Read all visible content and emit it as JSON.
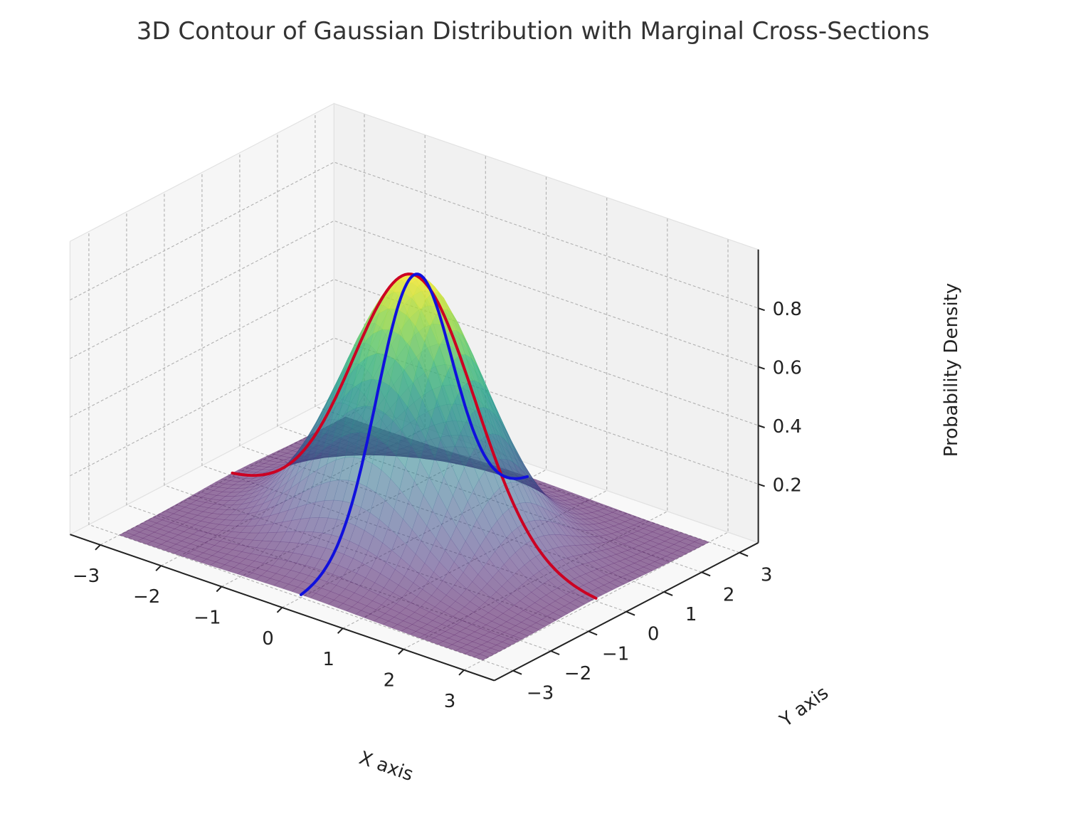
{
  "chart_data": {
    "type": "surface",
    "title": "3D Contour of Gaussian Distribution with Marginal Cross-Sections",
    "xlabel": "X axis",
    "ylabel": "Y axis",
    "zlabel": "Probability Density",
    "xlim": [
      -3,
      3
    ],
    "ylim": [
      -3,
      3
    ],
    "zlim": [
      0,
      1.0
    ],
    "x_ticks": [
      -3,
      -2,
      -1,
      0,
      1,
      2,
      3
    ],
    "x_tick_labels": [
      "−3",
      "−2",
      "−1",
      "0",
      "1",
      "2",
      "3"
    ],
    "y_ticks": [
      -3,
      -2,
      -1,
      0,
      1,
      2,
      3
    ],
    "y_tick_labels": [
      "−3",
      "−2",
      "−1",
      "0",
      "1",
      "2",
      "3"
    ],
    "z_ticks": [
      0.2,
      0.4,
      0.6,
      0.8
    ],
    "z_tick_labels": [
      "0.2",
      "0.4",
      "0.6",
      "0.8"
    ],
    "surface": {
      "function": "z = 0.9 * exp(-(x^2 + y^2) / 2)",
      "peak": 0.9,
      "sigma": 1,
      "colormap": "viridis",
      "alpha": 0.55
    },
    "series": [
      {
        "color": "#cc0022",
        "slice": "y = 0",
        "function": "z = 0.9 * exp(-x^2 / 2)",
        "x_range": [
          -3,
          3
        ]
      },
      {
        "color": "#1010dd",
        "slice": "x = 0",
        "function": "z = 0.9 * exp(-y^2 / 2)",
        "y_range": [
          -3,
          3
        ]
      }
    ],
    "grid": true,
    "style": "seaborn-whitegrid"
  }
}
